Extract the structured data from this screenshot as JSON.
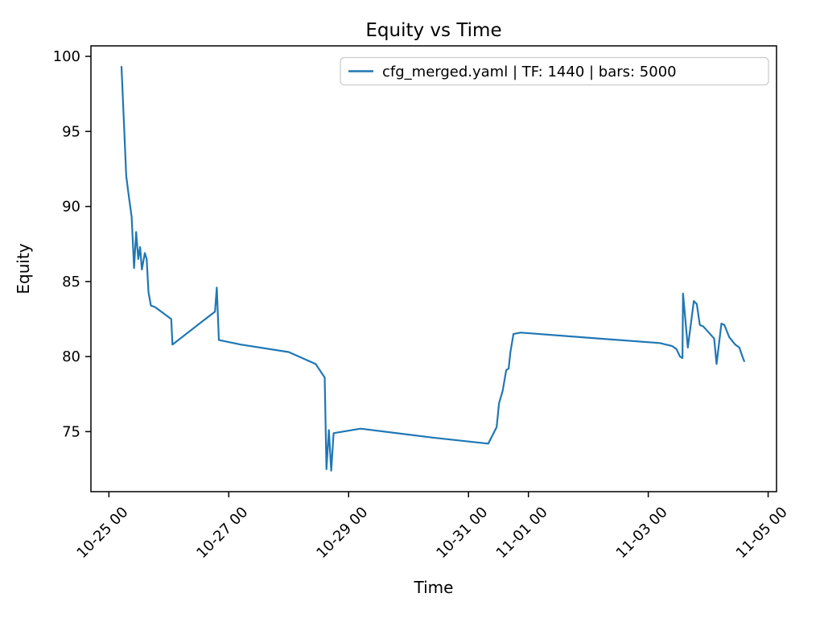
{
  "figure": {
    "background": "#ffffff",
    "frame_color": "#000000",
    "text_color": "#000000"
  },
  "chart_data": {
    "type": "line",
    "title": "Equity vs Time",
    "xlabel": "Time",
    "ylabel": "Equity",
    "grid": false,
    "legend_position": "upper right",
    "legend": [
      {
        "label": "cfg_merged.yaml | TF: 1440 | bars: 5000",
        "color": "#1f77b4"
      }
    ],
    "x_axis_note": "days offset from first tick 10-25 00",
    "xlim": [
      -0.3,
      11.14
    ],
    "ylim": [
      71.0,
      100.7
    ],
    "y_ticks": [
      75,
      80,
      85,
      90,
      95,
      100
    ],
    "x_ticks": [
      {
        "day": 0,
        "label": "10-25 00"
      },
      {
        "day": 2,
        "label": "10-27 00"
      },
      {
        "day": 4,
        "label": "10-29 00"
      },
      {
        "day": 6,
        "label": "10-31 00"
      },
      {
        "day": 7,
        "label": "11-01 00"
      },
      {
        "day": 9,
        "label": "11-03 00"
      },
      {
        "day": 11,
        "label": "11-05 00"
      }
    ],
    "series": [
      {
        "name": "cfg_merged.yaml | TF: 1440 | bars: 5000",
        "color": "#1f77b4",
        "points": [
          [
            0.21,
            99.3
          ],
          [
            0.29,
            92.0
          ],
          [
            0.3,
            91.7
          ],
          [
            0.315,
            91.2
          ],
          [
            0.38,
            89.3
          ],
          [
            0.42,
            85.9
          ],
          [
            0.455,
            88.3
          ],
          [
            0.49,
            86.5
          ],
          [
            0.52,
            87.3
          ],
          [
            0.55,
            85.8
          ],
          [
            0.6,
            86.9
          ],
          [
            0.63,
            86.5
          ],
          [
            0.66,
            84.3
          ],
          [
            0.7,
            83.4
          ],
          [
            0.77,
            83.3
          ],
          [
            1.04,
            82.5
          ],
          [
            1.06,
            80.8
          ],
          [
            1.77,
            83.0
          ],
          [
            1.8,
            84.6
          ],
          [
            1.835,
            81.1
          ],
          [
            2.2,
            80.8
          ],
          [
            3.0,
            80.3
          ],
          [
            3.45,
            79.5
          ],
          [
            3.6,
            78.6
          ],
          [
            3.63,
            72.5
          ],
          [
            3.67,
            75.1
          ],
          [
            3.71,
            72.4
          ],
          [
            3.75,
            74.9
          ],
          [
            4.2,
            75.2
          ],
          [
            5.4,
            74.6
          ],
          [
            6.33,
            74.2
          ],
          [
            6.47,
            75.3
          ],
          [
            6.51,
            76.9
          ],
          [
            6.57,
            77.7
          ],
          [
            6.63,
            79.1
          ],
          [
            6.67,
            79.2
          ],
          [
            6.7,
            80.3
          ],
          [
            6.75,
            81.5
          ],
          [
            6.87,
            81.6
          ],
          [
            7.85,
            81.3
          ],
          [
            9.19,
            80.9
          ],
          [
            9.4,
            80.7
          ],
          [
            9.47,
            80.5
          ],
          [
            9.53,
            80.0
          ],
          [
            9.57,
            79.9
          ],
          [
            9.58,
            84.2
          ],
          [
            9.66,
            80.6
          ],
          [
            9.76,
            83.7
          ],
          [
            9.81,
            83.5
          ],
          [
            9.86,
            82.1
          ],
          [
            9.92,
            82.0
          ],
          [
            10.1,
            81.2
          ],
          [
            10.14,
            79.5
          ],
          [
            10.22,
            82.2
          ],
          [
            10.27,
            82.1
          ],
          [
            10.35,
            81.3
          ],
          [
            10.45,
            80.8
          ],
          [
            10.52,
            80.6
          ],
          [
            10.58,
            79.9
          ],
          [
            10.6,
            79.7
          ]
        ]
      }
    ]
  }
}
